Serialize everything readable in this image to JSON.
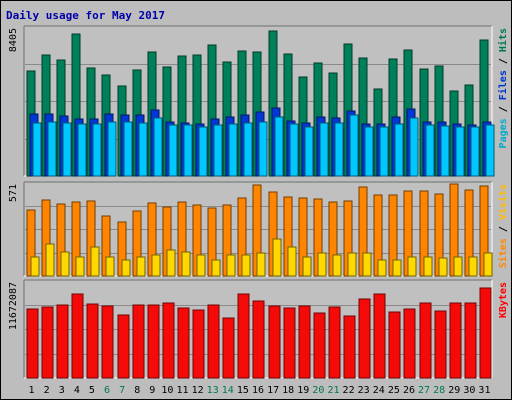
{
  "chart_data": {
    "type": "bar",
    "title": "Daily usage for May 2017",
    "categories": [
      "1",
      "2",
      "3",
      "4",
      "5",
      "6",
      "7",
      "8",
      "9",
      "10",
      "11",
      "12",
      "13",
      "14",
      "15",
      "16",
      "17",
      "18",
      "19",
      "20",
      "21",
      "22",
      "23",
      "24",
      "25",
      "26",
      "27",
      "28",
      "29",
      "30",
      "31"
    ],
    "weekend_days": [
      "6",
      "7",
      "13",
      "14",
      "20",
      "21",
      "27",
      "28"
    ],
    "panels": [
      {
        "id": "hits",
        "max_label": "8405",
        "ymax": 8405,
        "side_label": [
          {
            "text": "Pages",
            "color": "#00aacc"
          },
          {
            "text": " / ",
            "color": "#000000"
          },
          {
            "text": "Files",
            "color": "#0033cc"
          },
          {
            "text": " / ",
            "color": "#000000"
          },
          {
            "text": "Hits",
            "color": "#007755"
          }
        ],
        "series": [
          {
            "name": "Hits",
            "color": "#00805a",
            "values": [
              5950,
              6880,
              6570,
              8040,
              6160,
              5720,
              5120,
              6020,
              7050,
              6180,
              6810,
              6890,
              7420,
              6490,
              7110,
              7060,
              8230,
              6930,
              5600,
              6410,
              5840,
              7500,
              6710,
              4930,
              6620,
              7160,
              6090,
              6250,
              4840,
              5180,
              7740
            ]
          },
          {
            "name": "Files",
            "color": "#0037d5",
            "values": [
              3540,
              3530,
              3420,
              3220,
              3260,
              3510,
              3490,
              3470,
              3730,
              3050,
              2990,
              2940,
              3230,
              3330,
              3460,
              3640,
              3860,
              3150,
              3020,
              3370,
              3280,
              3700,
              2950,
              2930,
              3330,
              3800,
              3090,
              3090,
              2930,
              2920,
              3050
            ]
          },
          {
            "name": "Pages",
            "color": "#00c7ff",
            "values": [
              3030,
              3060,
              3010,
              2960,
              2950,
              3050,
              3060,
              3010,
              3280,
              2880,
              2870,
              2800,
              2920,
              2960,
              3030,
              3070,
              3360,
              2950,
              2810,
              3030,
              2990,
              3490,
              2780,
              2800,
              2980,
              3300,
              2900,
              2850,
              2760,
              2770,
              2880
            ]
          }
        ]
      },
      {
        "id": "visits",
        "max_label": "571",
        "ymax": 571,
        "side_label": [
          {
            "text": "Sites",
            "color": "#ff8800"
          },
          {
            "text": " / ",
            "color": "#000000"
          },
          {
            "text": "Visits",
            "color": "#ffbb00"
          }
        ],
        "series": [
          {
            "name": "Visits",
            "color": "#ff8400",
            "values": [
              410,
              470,
              445,
              460,
              465,
              370,
              335,
              405,
              455,
              430,
              460,
              440,
              425,
              440,
              485,
              565,
              520,
              490,
              485,
              480,
              460,
              465,
              550,
              505,
              500,
              530,
              530,
              510,
              570,
              535,
              560
            ]
          },
          {
            "name": "Sites",
            "color": "#ffd800",
            "values": [
              120,
              200,
              150,
              120,
              180,
              120,
              100,
              120,
              130,
              160,
              150,
              130,
              100,
              130,
              130,
              140,
              230,
              180,
              120,
              140,
              130,
              140,
              140,
              100,
              100,
              120,
              120,
              110,
              120,
              120,
              140
            ]
          }
        ]
      },
      {
        "id": "kbytes",
        "max_label": "11672087",
        "ymax": 11672087,
        "side_label": [
          {
            "text": "KBytes",
            "color": "#ff0000"
          }
        ],
        "series": [
          {
            "name": "KBytes",
            "color": "#f50a0a",
            "values": [
              8450000,
              8600000,
              8850000,
              10200000,
              9000000,
              8800000,
              7700000,
              8850000,
              8820000,
              9100000,
              8550000,
              8280000,
              8900000,
              7300000,
              10200000,
              9400000,
              8800000,
              8500000,
              8700000,
              7950000,
              8620000,
              7550000,
              9600000,
              10200000,
              8080000,
              8400000,
              9100000,
              8200000,
              9150000,
              9150000,
              11000000
            ]
          }
        ]
      }
    ]
  }
}
